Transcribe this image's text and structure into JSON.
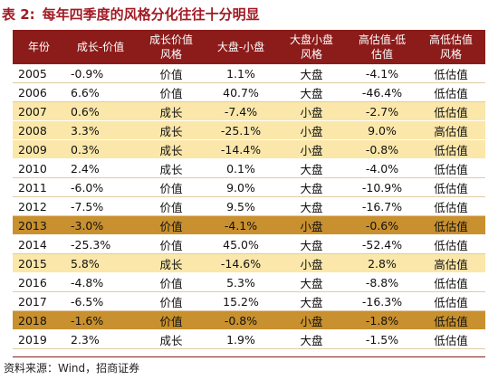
{
  "title": {
    "number": "表 2:",
    "text": "每年四季度的风格分化往往十分明显"
  },
  "headers": [
    "年份",
    "成长-价值",
    "成长价值\n风格",
    "大盘-小盘",
    "大盘小盘\n风格",
    "高估值-低\n估值",
    "高低估值\n风格"
  ],
  "rows": [
    {
      "year": "2005",
      "gv": "-0.9%",
      "gv_style": "价值",
      "ls": "1.1%",
      "ls_style": "大盘",
      "hl": "-4.1%",
      "hl_style": "低估值",
      "band": "white",
      "red": false
    },
    {
      "year": "2006",
      "gv": "6.6%",
      "gv_style": "价值",
      "ls": "40.7%",
      "ls_style": "大盘",
      "hl": "-46.4%",
      "hl_style": "低估值",
      "band": "white",
      "red": false
    },
    {
      "year": "2007",
      "gv": "0.6%",
      "gv_style": "成长",
      "ls": "-7.4%",
      "ls_style": "小盘",
      "hl": "-2.7%",
      "hl_style": "低估值",
      "band": "yellow",
      "red": false
    },
    {
      "year": "2008",
      "gv": "3.3%",
      "gv_style": "成长",
      "ls": "-25.1%",
      "ls_style": "小盘",
      "hl": "9.0%",
      "hl_style": "高估值",
      "band": "yellow",
      "red": true
    },
    {
      "year": "2009",
      "gv": "0.3%",
      "gv_style": "成长",
      "ls": "-14.4%",
      "ls_style": "小盘",
      "hl": "-0.8%",
      "hl_style": "低估值",
      "band": "yellow",
      "red": false
    },
    {
      "year": "2010",
      "gv": "2.4%",
      "gv_style": "成长",
      "ls": "0.1%",
      "ls_style": "大盘",
      "hl": "-4.0%",
      "hl_style": "低估值",
      "band": "white",
      "red": false
    },
    {
      "year": "2011",
      "gv": "-6.0%",
      "gv_style": "价值",
      "ls": "9.0%",
      "ls_style": "大盘",
      "hl": "-10.9%",
      "hl_style": "低估值",
      "band": "white",
      "red": false
    },
    {
      "year": "2012",
      "gv": "-7.5%",
      "gv_style": "价值",
      "ls": "9.5%",
      "ls_style": "大盘",
      "hl": "-16.7%",
      "hl_style": "低估值",
      "band": "white",
      "red": false
    },
    {
      "year": "2013",
      "gv": "-3.0%",
      "gv_style": "价值",
      "ls": "-4.1%",
      "ls_style": "小盘",
      "hl": "-0.6%",
      "hl_style": "低估值",
      "band": "dark",
      "red": false
    },
    {
      "year": "2014",
      "gv": "-25.3%",
      "gv_style": "价值",
      "ls": "45.0%",
      "ls_style": "大盘",
      "hl": "-52.4%",
      "hl_style": "低估值",
      "band": "white",
      "red": false
    },
    {
      "year": "2015",
      "gv": "5.8%",
      "gv_style": "成长",
      "ls": "-14.6%",
      "ls_style": "小盘",
      "hl": "2.8%",
      "hl_style": "高估值",
      "band": "yellow",
      "red": true
    },
    {
      "year": "2016",
      "gv": "-4.8%",
      "gv_style": "价值",
      "ls": "5.3%",
      "ls_style": "大盘",
      "hl": "-8.8%",
      "hl_style": "低估值",
      "band": "white",
      "red": false
    },
    {
      "year": "2017",
      "gv": "-6.5%",
      "gv_style": "价值",
      "ls": "15.2%",
      "ls_style": "大盘",
      "hl": "-16.3%",
      "hl_style": "低估值",
      "band": "white",
      "red": false
    },
    {
      "year": "2018",
      "gv": "-1.6%",
      "gv_style": "价值",
      "ls": "-0.8%",
      "ls_style": "小盘",
      "hl": "-1.8%",
      "hl_style": "低估值",
      "band": "dark",
      "red": false
    },
    {
      "year": "2019",
      "gv": "2.3%",
      "gv_style": "成长",
      "ls": "1.9%",
      "ls_style": "大盘",
      "hl": "-1.5%",
      "hl_style": "低估值",
      "band": "white",
      "red": false
    }
  ],
  "colors": {
    "header_bg": "#8c1c1a",
    "title": "#a11a24",
    "highlight_light": "#fbe7a9",
    "highlight_dark": "#c8902e",
    "red_text": "#e03228"
  },
  "source": "资料来源：Wind，招商证券"
}
